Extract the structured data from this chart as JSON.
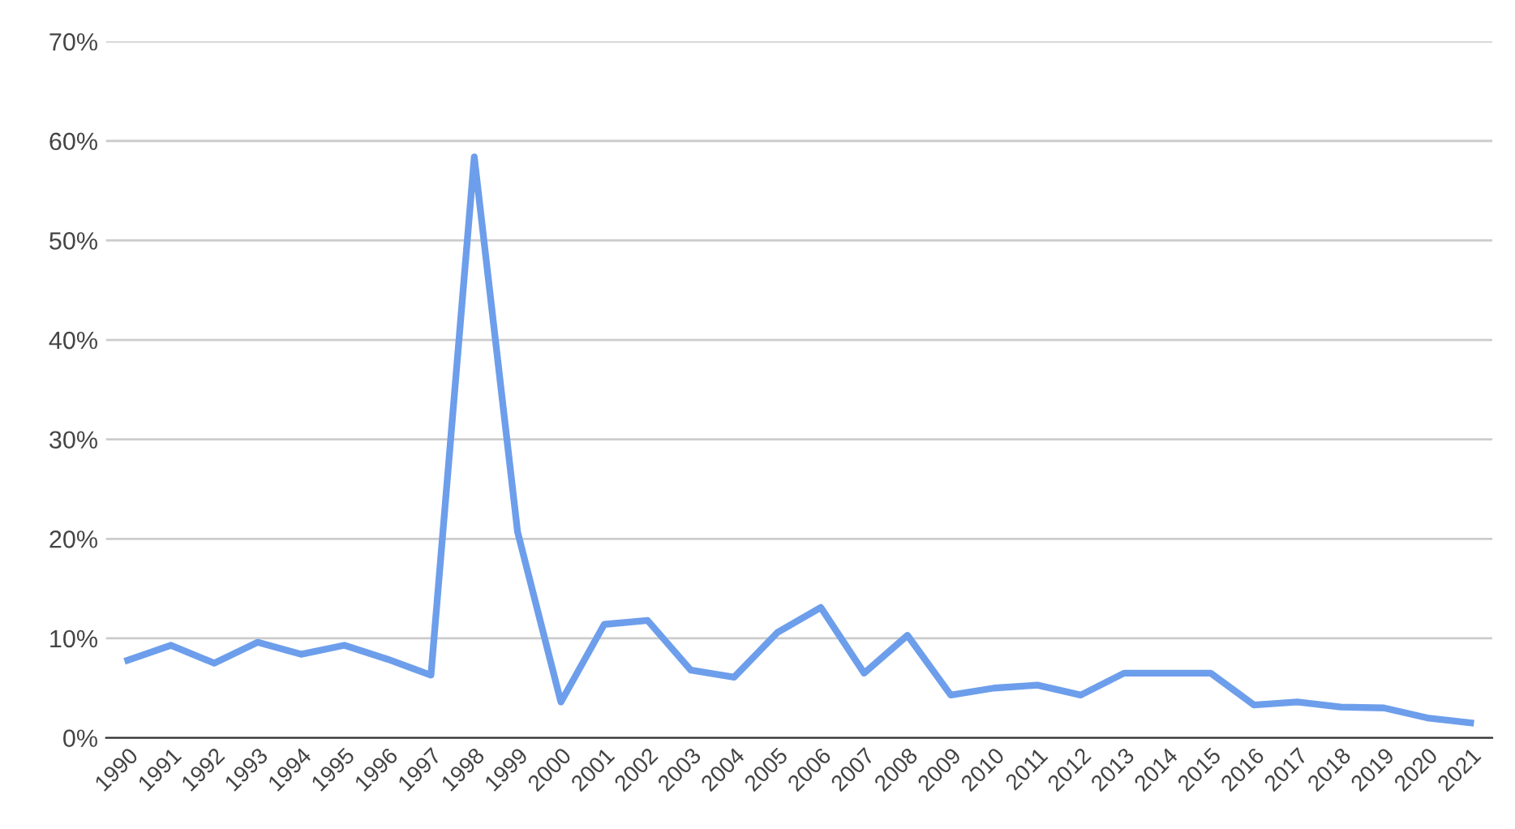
{
  "chart_data": {
    "type": "line",
    "categories": [
      "1990",
      "1991",
      "1992",
      "1993",
      "1994",
      "1995",
      "1996",
      "1997",
      "1998",
      "1999",
      "2000",
      "2001",
      "2002",
      "2003",
      "2004",
      "2005",
      "2006",
      "2007",
      "2008",
      "2009",
      "2010",
      "2011",
      "2012",
      "2013",
      "2014",
      "2015",
      "2016",
      "2017",
      "2018",
      "2019",
      "2020",
      "2021"
    ],
    "series": [
      {
        "color": "#6d9eeb",
        "values": [
          7.8,
          9.3,
          7.5,
          9.6,
          8.4,
          9.3,
          7.9,
          6.3,
          58.4,
          20.7,
          3.6,
          11.4,
          11.8,
          6.8,
          6.1,
          10.6,
          13.1,
          6.5,
          10.3,
          4.3,
          5.0,
          5.3,
          4.3,
          6.5,
          6.5,
          6.5,
          3.3,
          3.6,
          3.1,
          3.0,
          2.0,
          1.5
        ]
      }
    ],
    "ylim": [
      0,
      70
    ],
    "yticks": [
      {
        "value": 0,
        "label": "0%"
      },
      {
        "value": 10,
        "label": "10%"
      },
      {
        "value": 20,
        "label": "20%"
      },
      {
        "value": 30,
        "label": "30%"
      },
      {
        "value": 40,
        "label": "40%"
      },
      {
        "value": 50,
        "label": "50%"
      },
      {
        "value": 60,
        "label": "60%"
      },
      {
        "value": 70,
        "label": "70%"
      }
    ],
    "grid": "y",
    "marker": "none",
    "line_style": "solid"
  }
}
